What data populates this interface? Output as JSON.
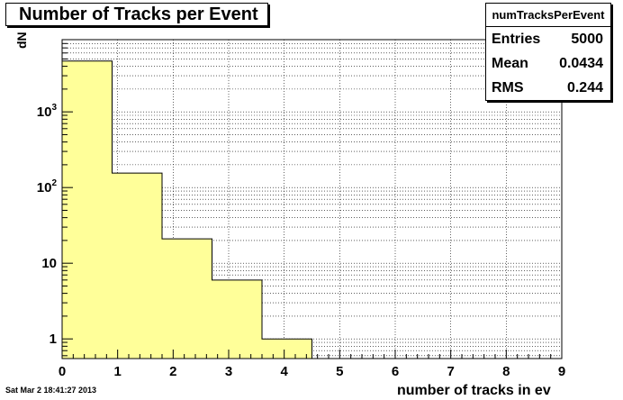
{
  "chart_data": {
    "type": "bar",
    "title": "Number of Tracks per Event",
    "xlabel": "number of tracks in ev",
    "ylabel": "dN",
    "x_range": [
      0,
      9
    ],
    "x_ticks": [
      "0",
      "1",
      "2",
      "3",
      "4",
      "5",
      "6",
      "7",
      "8",
      "9"
    ],
    "y_scale": "log",
    "y_ticks": [
      {
        "value": 1,
        "label": "1"
      },
      {
        "value": 10,
        "label": "10"
      },
      {
        "value": 100,
        "label": "10",
        "exp": "2"
      },
      {
        "value": 1000,
        "label": "10",
        "exp": "3"
      }
    ],
    "bins": [
      {
        "low": 0.0,
        "high": 0.9,
        "value": 4700
      },
      {
        "low": 0.9,
        "high": 1.8,
        "value": 155
      },
      {
        "low": 1.8,
        "high": 2.7,
        "value": 21
      },
      {
        "low": 2.7,
        "high": 3.6,
        "value": 6
      },
      {
        "low": 3.6,
        "high": 4.5,
        "value": 1
      }
    ],
    "fill_color": "#ffff99",
    "grid": true
  },
  "stats": {
    "name": "numTracksPerEvent",
    "rows": [
      {
        "label": "Entries",
        "value": "5000"
      },
      {
        "label": "Mean",
        "value": "0.0434"
      },
      {
        "label": "RMS",
        "value": "0.244"
      }
    ]
  },
  "footer": {
    "date": "Sat Mar  2 18:41:27 2013"
  }
}
